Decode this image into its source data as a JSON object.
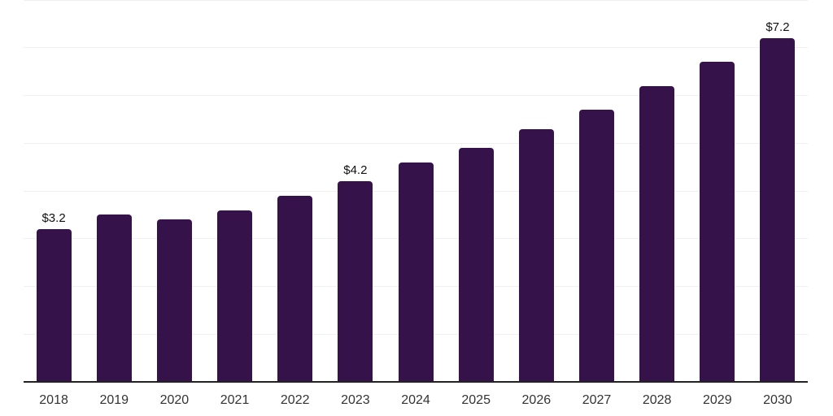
{
  "chart_data": {
    "type": "bar",
    "title": "",
    "xlabel": "",
    "ylabel": "",
    "categories": [
      "2018",
      "2019",
      "2020",
      "2021",
      "2022",
      "2023",
      "2024",
      "2025",
      "2026",
      "2027",
      "2028",
      "2029",
      "2030"
    ],
    "values": [
      3.2,
      3.5,
      3.4,
      3.6,
      3.9,
      4.2,
      4.6,
      4.9,
      5.3,
      5.7,
      6.2,
      6.7,
      7.2
    ],
    "value_labels": {
      "2018": "$3.2",
      "2023": "$4.2",
      "2030": "$7.2"
    },
    "ylim": [
      0,
      8
    ],
    "grid": {
      "horizontal": true,
      "step": 1,
      "y_tick_labels_visible": false
    },
    "legend_position": "none",
    "colors": {
      "bar": "#36124b",
      "gridline": "#f0f0f0",
      "axis_line": "#222222",
      "tick_label": "#333333",
      "value_label": "#111111",
      "background": "#ffffff"
    }
  }
}
